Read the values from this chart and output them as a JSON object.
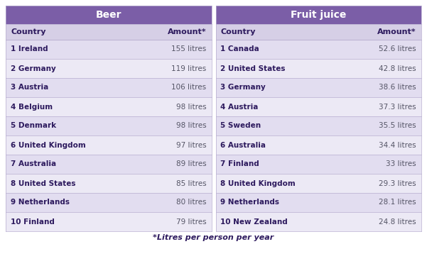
{
  "beer_header": "Beer",
  "juice_header": "Fruit juice",
  "col_headers": [
    "Country",
    "Amount*"
  ],
  "beer_data": [
    [
      "1 Ireland",
      "155 litres"
    ],
    [
      "2 Germany",
      "119 litres"
    ],
    [
      "3 Austria",
      "106 litres"
    ],
    [
      "4 Belgium",
      "98 litres"
    ],
    [
      "5 Denmark",
      "98 litres"
    ],
    [
      "6 United Kingdom",
      "97 litres"
    ],
    [
      "7 Australia",
      "89 litres"
    ],
    [
      "8 United States",
      "85 litres"
    ],
    [
      "9 Netherlands",
      "80 litres"
    ],
    [
      "10 Finland",
      "79 litres"
    ]
  ],
  "juice_data": [
    [
      "1 Canada",
      "52.6 litres"
    ],
    [
      "2 United States",
      "42.8 litres"
    ],
    [
      "3 Germany",
      "38.6 litres"
    ],
    [
      "4 Austria",
      "37.3 litres"
    ],
    [
      "5 Sweden",
      "35.5 litres"
    ],
    [
      "6 Australia",
      "34.4 litres"
    ],
    [
      "7 Finland",
      "33 litres"
    ],
    [
      "8 United Kingdom",
      "29.3 litres"
    ],
    [
      "9 Netherlands",
      "28.1 litres"
    ],
    [
      "10 New Zealand",
      "24.8 litres"
    ]
  ],
  "footnote": "*Litres per person per year",
  "header_bg": "#7b5ea7",
  "header_text": "#ffffff",
  "subheader_bg": "#d6cfe6",
  "row_odd_bg": "#e2ddf0",
  "row_even_bg": "#ece9f5",
  "border_color": "#b8aed0",
  "country_bold_color": "#2d1a5e",
  "amount_color": "#555566",
  "footnote_color": "#2d1a5e"
}
